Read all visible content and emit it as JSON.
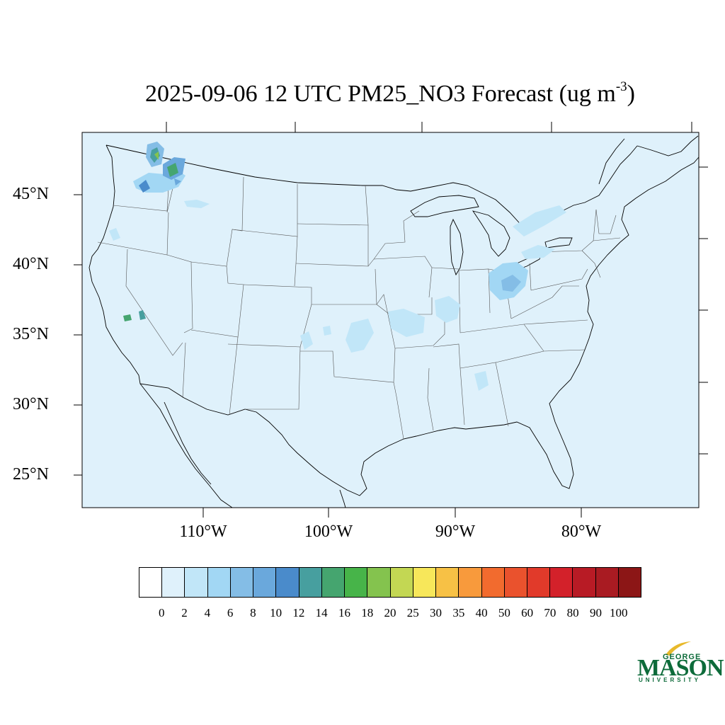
{
  "title": {
    "main": "2025-09-06 12 UTC PM25_NO3 Forecast (ug m",
    "superscript": "-3",
    "close": ")"
  },
  "map": {
    "background_color": "#dff1fb",
    "lat_labels": [
      "45°N",
      "40°N",
      "35°N",
      "30°N",
      "25°N"
    ],
    "lon_labels": [
      "110°W",
      "100°W",
      "90°W",
      "80°W"
    ]
  },
  "colorbar": {
    "levels": [
      "0",
      "2",
      "4",
      "6",
      "8",
      "10",
      "12",
      "14",
      "16",
      "18",
      "20",
      "25",
      "30",
      "35",
      "40",
      "50",
      "60",
      "70",
      "80",
      "90",
      "100"
    ],
    "colors": [
      "#ffffff",
      "#dff1fb",
      "#c1e6f8",
      "#a2d7f4",
      "#84bde6",
      "#6aa8dc",
      "#4a8bcb",
      "#479f9f",
      "#45a56f",
      "#47b449",
      "#84c34e",
      "#c3d753",
      "#f7e75a",
      "#f7c145",
      "#f89a3c",
      "#f26b2e",
      "#ea522d",
      "#e13a2a",
      "#d3212a",
      "#b81b25",
      "#a91b22",
      "#8c1616"
    ]
  },
  "logo": {
    "george": "GEORGE",
    "mason": "MASON",
    "university": "UNIVERSITY",
    "green": "#0d6b3a",
    "gold": "#e8b92b"
  }
}
